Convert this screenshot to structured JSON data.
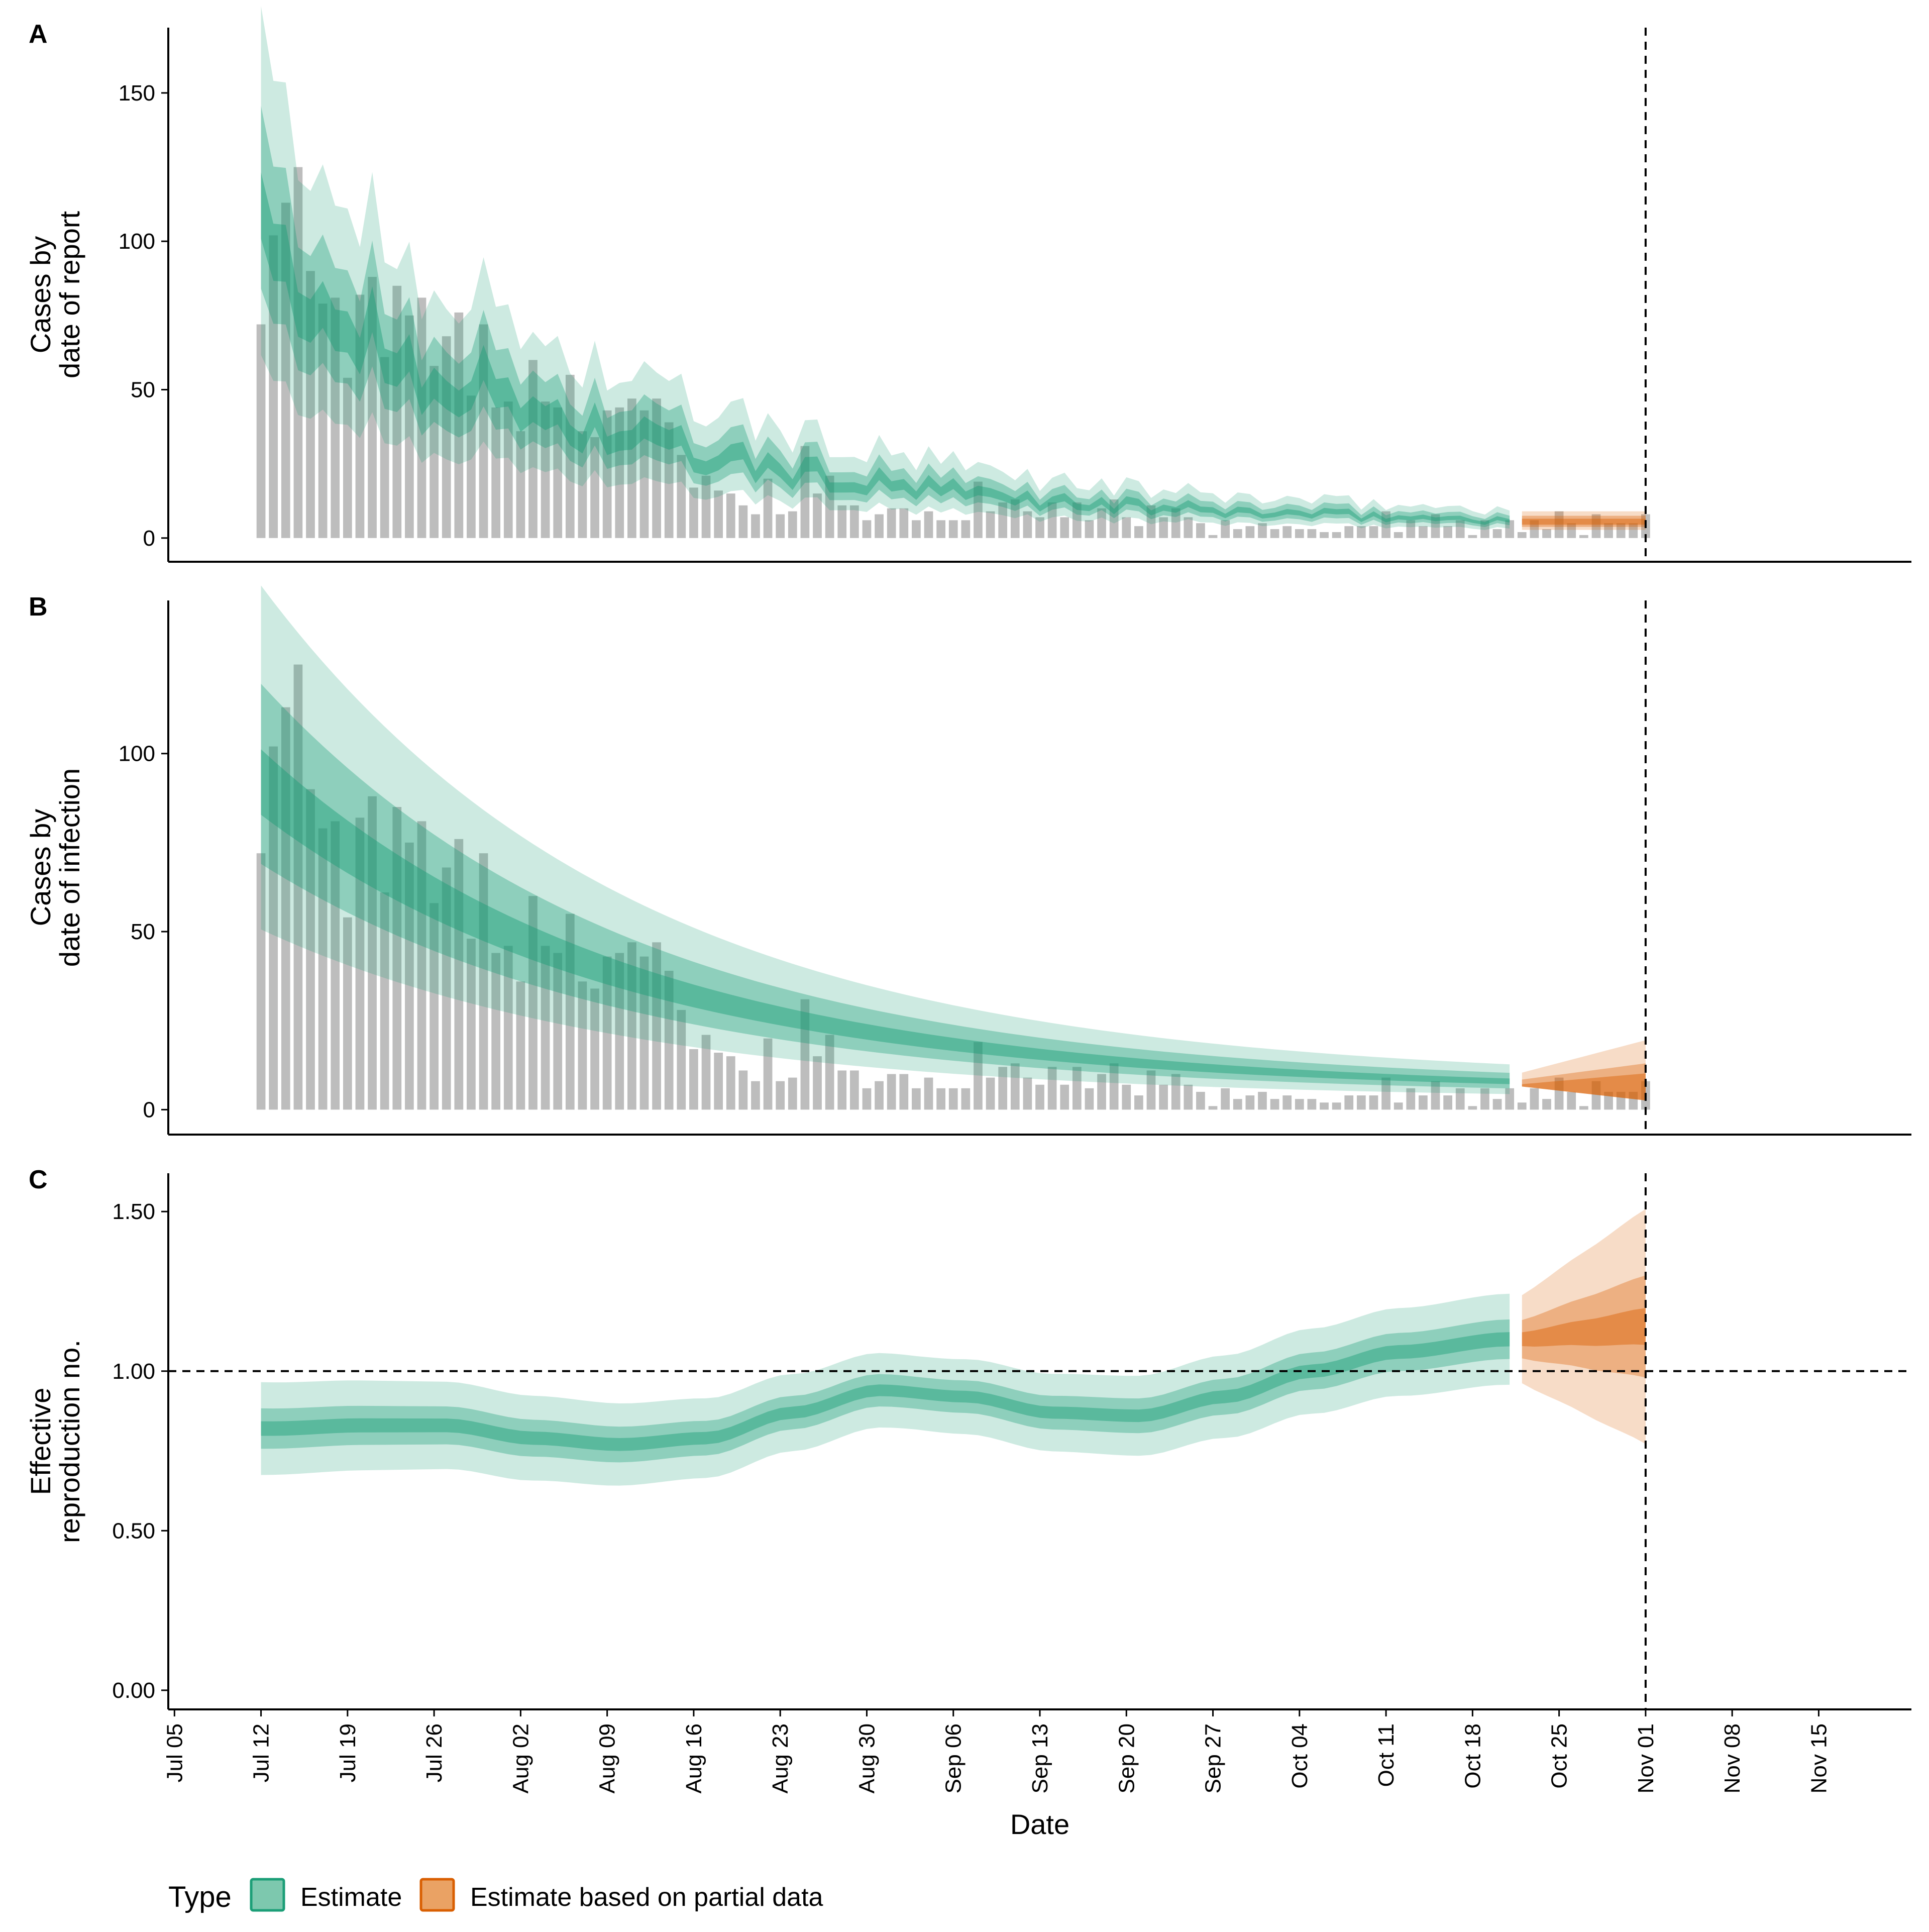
{
  "colors": {
    "estimate": "#1b9e77",
    "partial": "#d95f02",
    "bars": "#999999",
    "legend_estimate_fill": "#7dc8ae",
    "legend_estimate_border": "#1b9e77",
    "legend_partial_fill": "#eaa264",
    "legend_partial_border": "#d95f02"
  },
  "legend": {
    "title": "Type",
    "items": [
      {
        "label": "Estimate",
        "key": "estimate"
      },
      {
        "label": "Estimate based on partial data",
        "key": "partial"
      }
    ]
  },
  "chart_data": {
    "type": "area",
    "xlabel": "Date",
    "x_ticks": [
      "Jul 05",
      "Jul 12",
      "Jul 19",
      "Jul 26",
      "Aug 02",
      "Aug 09",
      "Aug 16",
      "Aug 23",
      "Aug 30",
      "Sep 06",
      "Sep 13",
      "Sep 20",
      "Sep 27",
      "Oct 04",
      "Oct 11",
      "Oct 18",
      "Oct 25",
      "Nov 01",
      "Nov 08",
      "Nov 15"
    ],
    "x_range_days": [
      -0.5,
      140.5
    ],
    "x_origin_label": "Jul 05",
    "estimate_end_day": 108,
    "partial_start_day": 109,
    "partial_end_day": 119,
    "vline_day": 119,
    "cases_reported": [
      72,
      102,
      113,
      125,
      90,
      79,
      81,
      54,
      82,
      88,
      61,
      85,
      75,
      81,
      58,
      68,
      76,
      48,
      72,
      44,
      46,
      36,
      60,
      46,
      44,
      55,
      36,
      34,
      43,
      44,
      47,
      43,
      47,
      39,
      28,
      17,
      21,
      16,
      15,
      11,
      8,
      20,
      8,
      9,
      31,
      15,
      21,
      11,
      11,
      6,
      8,
      10,
      10,
      6,
      9,
      6,
      6,
      6,
      19,
      9,
      12,
      13,
      9,
      7,
      12,
      7,
      12,
      6,
      10,
      13,
      7,
      4,
      11,
      7,
      10,
      7,
      5,
      1,
      6,
      3,
      4,
      5,
      3,
      4,
      3,
      3,
      2,
      2,
      4,
      4,
      4,
      9,
      2,
      6,
      4,
      8,
      4,
      6,
      1,
      6,
      3,
      6,
      2,
      6,
      3,
      9,
      5,
      1,
      8,
      5,
      5,
      5,
      8
    ],
    "panels": [
      {
        "label": "A",
        "ylabel": [
          "Cases by",
          "date of report"
        ],
        "yticks": [
          "0",
          "50",
          "100",
          "150"
        ],
        "ylim": [
          -8,
          172
        ],
        "bars": true,
        "estimate_median_start": 92,
        "estimate_median_end": 4,
        "estimate_decay": 0.0369,
        "partial_median": 5,
        "noise": true
      },
      {
        "label": "B",
        "ylabel": [
          "Cases by",
          "date of infection"
        ],
        "yticks": [
          "0",
          "50",
          "100"
        ],
        "ylim": [
          -7,
          143
        ],
        "bars": true,
        "estimate_median_start": 92,
        "estimate_median_end": 5,
        "estimate_decay": 0.0335,
        "partial_median": 6.5,
        "noise": false
      },
      {
        "label": "C",
        "ylabel": [
          "Effective",
          "reproduction no."
        ],
        "yticks": [
          "0.00",
          "0.50",
          "1.00",
          "1.50"
        ],
        "ylim": [
          -0.06,
          1.62
        ],
        "bars": false,
        "hline": 1.0,
        "rt_estimate": [
          [
            8,
            0.82
          ],
          [
            15,
            0.83
          ],
          [
            22,
            0.83
          ],
          [
            29,
            0.79
          ],
          [
            36,
            0.77
          ],
          [
            43,
            0.79
          ],
          [
            50,
            0.87
          ],
          [
            57,
            0.94
          ],
          [
            64,
            0.92
          ],
          [
            71,
            0.87
          ],
          [
            78,
            0.86
          ],
          [
            85,
            0.92
          ],
          [
            92,
            1.0
          ],
          [
            99,
            1.06
          ],
          [
            108,
            1.1
          ]
        ],
        "rt_partial": [
          [
            109,
            1.1
          ],
          [
            114,
            1.12
          ],
          [
            119,
            1.14
          ]
        ]
      }
    ]
  }
}
